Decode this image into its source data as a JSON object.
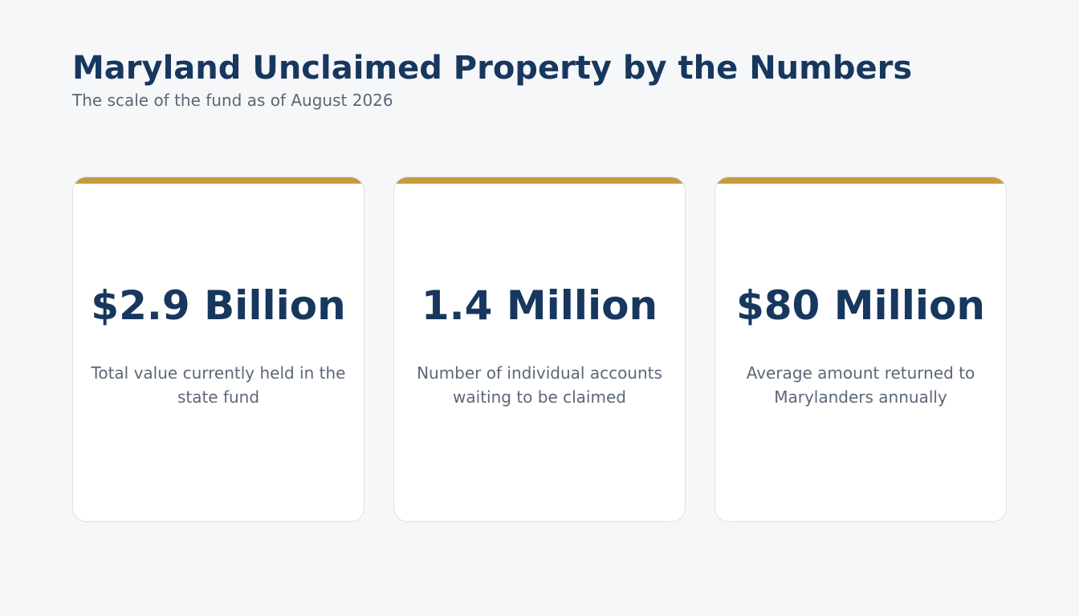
{
  "header": {
    "title": "Maryland Unclaimed Property by the Numbers",
    "subtitle": "The scale of the fund as of August 2026"
  },
  "colors": {
    "background": "#f6f7f9",
    "title": "#17375e",
    "subtitle": "#5b6778",
    "accent": "#c69a3e",
    "card_background": "#ffffff",
    "card_border": "#dde1e7"
  },
  "stats": [
    {
      "value": "$2.9 Billion",
      "description": "Total value currently held in the state fund"
    },
    {
      "value": "1.4 Million",
      "description": "Number of individual accounts waiting to be claimed"
    },
    {
      "value": "$80 Million",
      "description": "Average amount returned to Marylanders annually"
    }
  ]
}
